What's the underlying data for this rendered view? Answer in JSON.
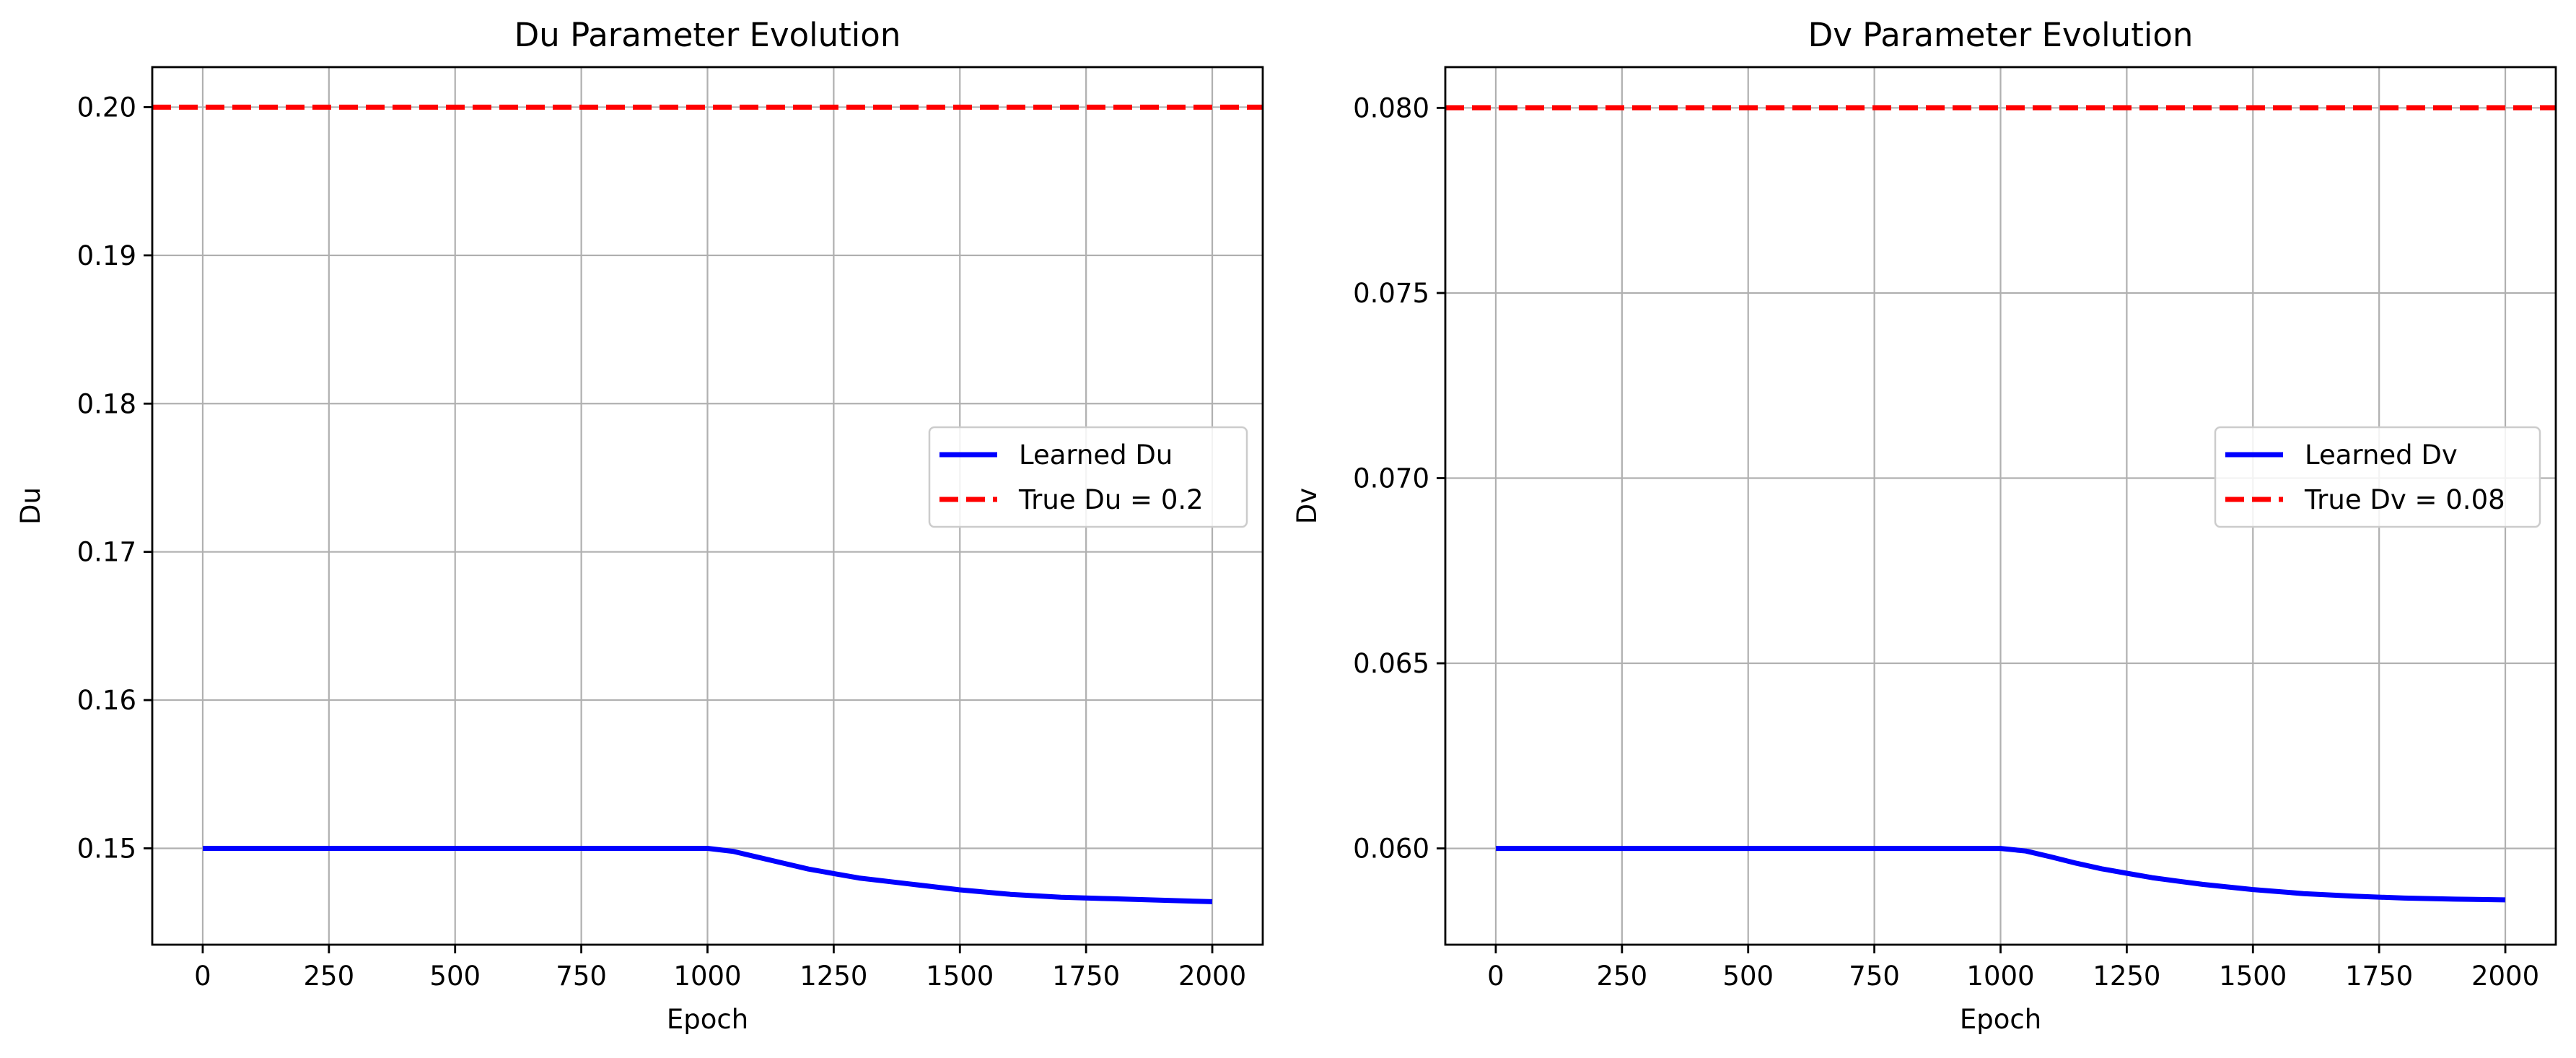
{
  "chart_data": [
    {
      "type": "line",
      "title": "Du Parameter Evolution",
      "xlabel": "Epoch",
      "ylabel": "Du",
      "xlim": [
        -100,
        2100
      ],
      "ylim": [
        0.1435,
        0.2027
      ],
      "xticks": [
        0,
        250,
        500,
        750,
        1000,
        1250,
        1500,
        1750,
        2000
      ],
      "xtick_labels": [
        "0",
        "250",
        "500",
        "750",
        "1000",
        "1250",
        "1500",
        "1750",
        "2000"
      ],
      "yticks": [
        0.15,
        0.16,
        0.17,
        0.18,
        0.19,
        0.2
      ],
      "ytick_labels": [
        "0.15",
        "0.16",
        "0.17",
        "0.18",
        "0.19",
        "0.20"
      ],
      "grid": true,
      "legend_position": "center-right",
      "series": [
        {
          "name": "Learned Du",
          "color": "#0000ff",
          "style": "solid",
          "x": [
            0,
            250,
            500,
            750,
            1000,
            1050,
            1100,
            1150,
            1200,
            1250,
            1300,
            1350,
            1400,
            1450,
            1500,
            1600,
            1700,
            1800,
            1900,
            2000
          ],
          "y": [
            0.15,
            0.15,
            0.15,
            0.15,
            0.15,
            0.1498,
            0.1494,
            0.149,
            0.1486,
            0.1483,
            0.148,
            0.1478,
            0.1476,
            0.1474,
            0.1472,
            0.1469,
            0.1467,
            0.1466,
            0.1465,
            0.1464
          ]
        },
        {
          "name": "True Du = 0.2",
          "color": "#ff0000",
          "style": "dashed",
          "x": [
            -100,
            2100
          ],
          "y": [
            0.2,
            0.2
          ]
        }
      ]
    },
    {
      "type": "line",
      "title": "Dv Parameter Evolution",
      "xlabel": "Epoch",
      "ylabel": "Dv",
      "xlim": [
        -100,
        2100
      ],
      "ylim": [
        0.0574,
        0.0811
      ],
      "xticks": [
        0,
        250,
        500,
        750,
        1000,
        1250,
        1500,
        1750,
        2000
      ],
      "xtick_labels": [
        "0",
        "250",
        "500",
        "750",
        "1000",
        "1250",
        "1500",
        "1750",
        "2000"
      ],
      "yticks": [
        0.06,
        0.065,
        0.07,
        0.075,
        0.08
      ],
      "ytick_labels": [
        "0.060",
        "0.065",
        "0.070",
        "0.075",
        "0.080"
      ],
      "grid": true,
      "legend_position": "center-right",
      "series": [
        {
          "name": "Learned Dv",
          "color": "#0000ff",
          "style": "solid",
          "x": [
            0,
            250,
            500,
            750,
            1000,
            1050,
            1100,
            1150,
            1200,
            1250,
            1300,
            1350,
            1400,
            1450,
            1500,
            1600,
            1700,
            1800,
            1900,
            2000
          ],
          "y": [
            0.06,
            0.06,
            0.06,
            0.06,
            0.06,
            0.05993,
            0.05977,
            0.0596,
            0.05945,
            0.05933,
            0.05921,
            0.05912,
            0.05903,
            0.05896,
            0.05889,
            0.05878,
            0.05871,
            0.05866,
            0.05863,
            0.05861
          ]
        },
        {
          "name": "True Dv = 0.08",
          "color": "#ff0000",
          "style": "dashed",
          "x": [
            -100,
            2100
          ],
          "y": [
            0.08,
            0.08
          ]
        }
      ]
    }
  ]
}
